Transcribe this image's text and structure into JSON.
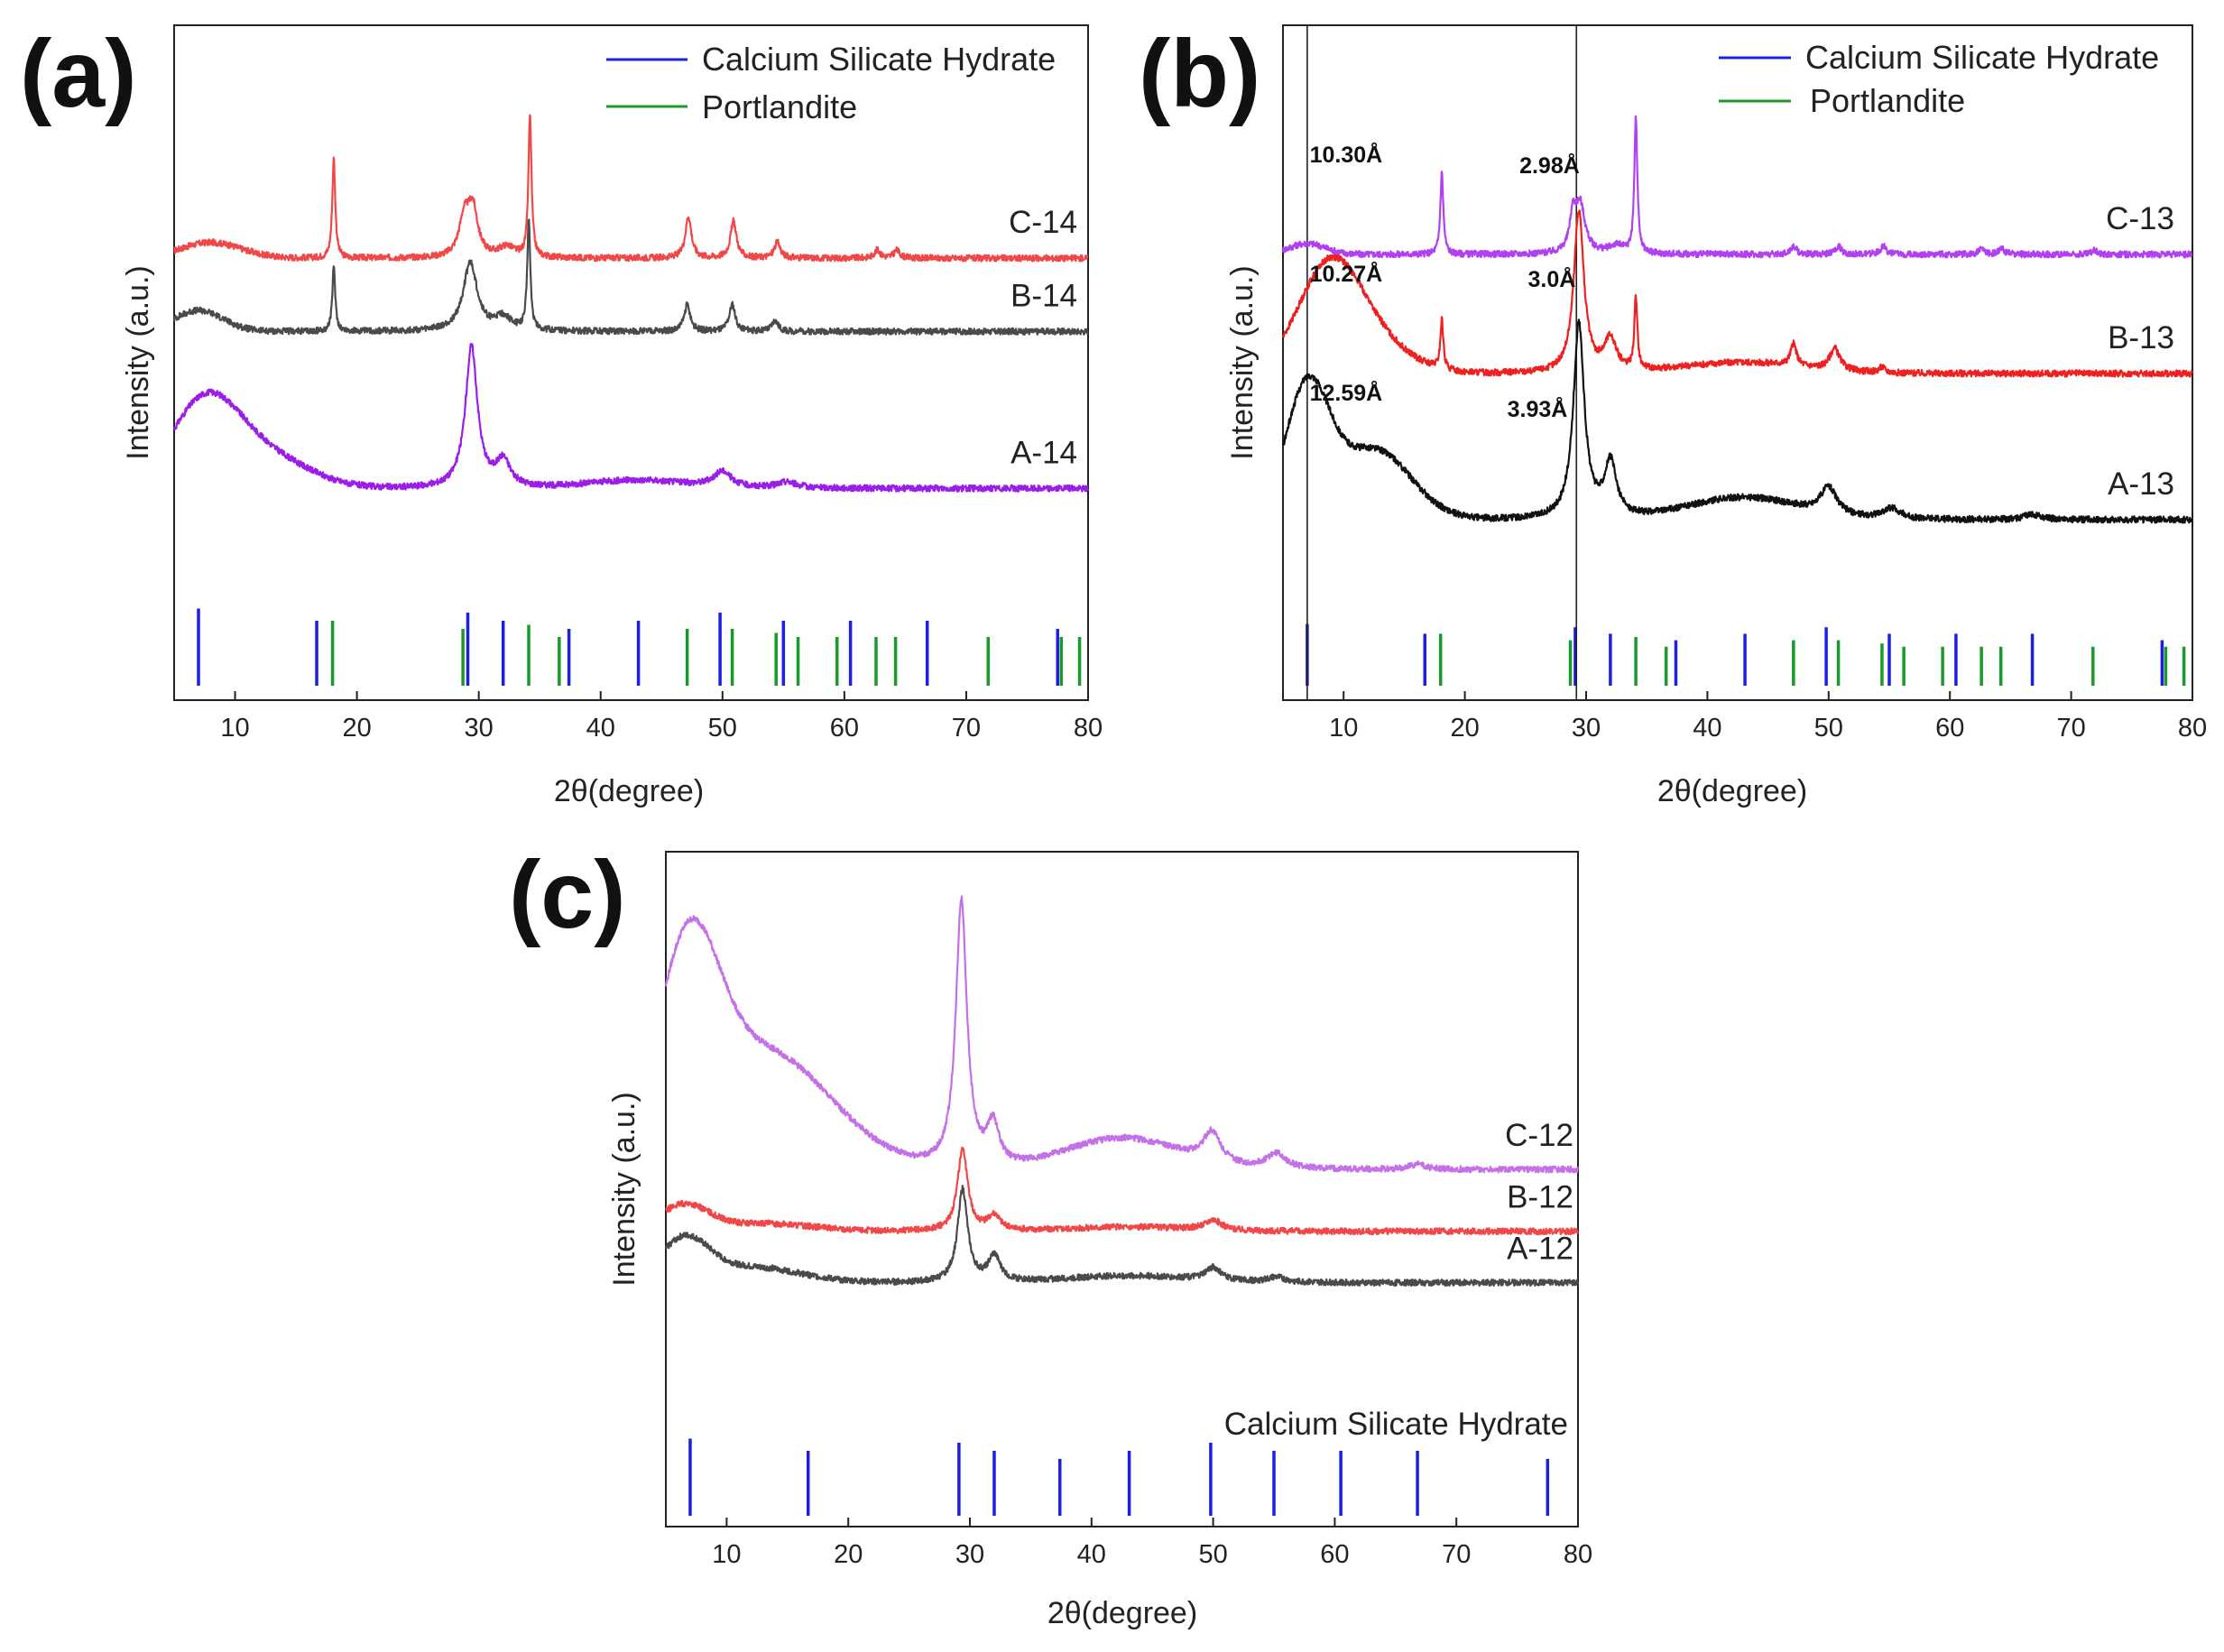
{
  "chart_data": [
    {
      "id": "a",
      "type": "line",
      "panel_label": "(a)",
      "xlabel": "2θ(degree)",
      "ylabel": "Intensity (a.u.)",
      "xlim": [
        5,
        80
      ],
      "xticks": [
        10,
        20,
        30,
        40,
        50,
        60,
        70,
        80
      ],
      "tick_labels": [
        "10",
        "20",
        "30",
        "40",
        "50",
        "60",
        "70",
        "80"
      ],
      "legend": [
        {
          "label": "Calcium Silicate Hydrate",
          "color": "#1f1fe0"
        },
        {
          "label": "Portlandite",
          "color": "#1a9a2a"
        }
      ],
      "series": [
        {
          "name": "C-14",
          "color": "#f04848",
          "baseline": 0.61,
          "peaks": [
            [
              18.1,
              0.19,
              0.15
            ],
            [
              28.8,
              0.07,
              0.5
            ],
            [
              29.5,
              0.09,
              0.5
            ],
            [
              32.3,
              0.02,
              0.8
            ],
            [
              34.2,
              0.27,
              0.15
            ],
            [
              47.2,
              0.08,
              0.3
            ],
            [
              50.9,
              0.07,
              0.3
            ],
            [
              54.5,
              0.03,
              0.3
            ],
            [
              62.7,
              0.015,
              0.3
            ],
            [
              64.3,
              0.015,
              0.3
            ]
          ],
          "broad": [
            [
              8.0,
              0.03,
              2.5
            ]
          ]
        },
        {
          "name": "B-14",
          "color": "#4a4a4a",
          "baseline": 0.47,
          "peaks": [
            [
              18.1,
              0.12,
              0.15
            ],
            [
              29.3,
              0.13,
              0.7
            ],
            [
              32.0,
              0.025,
              0.8
            ],
            [
              34.1,
              0.21,
              0.15
            ],
            [
              47.1,
              0.05,
              0.3
            ],
            [
              50.8,
              0.05,
              0.3
            ],
            [
              54.3,
              0.02,
              0.3
            ]
          ],
          "broad": [
            [
              7.0,
              0.04,
              2.0
            ]
          ]
        },
        {
          "name": "A-14",
          "color": "#9b1ee8",
          "baseline": 0.17,
          "peaks": [
            [
              29.4,
              0.27,
              0.6
            ],
            [
              32.0,
              0.05,
              0.7
            ],
            [
              50.0,
              0.03,
              0.9
            ],
            [
              55.3,
              0.012,
              1.0
            ]
          ],
          "broad": [
            [
              7.5,
              0.16,
              2.8
            ],
            [
              12.5,
              0.06,
              3.5
            ],
            [
              43.0,
              0.015,
              4.0
            ]
          ]
        }
      ],
      "ref_lines": [
        {
          "phase": "Calcium Silicate Hydrate",
          "positions": [
            7.0,
            16.7,
            29.1,
            32.0,
            37.4,
            43.1,
            49.8,
            55.0,
            60.5,
            66.8,
            77.5
          ]
        },
        {
          "phase": "Portlandite",
          "positions": [
            18.0,
            28.7,
            34.1,
            36.6,
            47.1,
            50.8,
            54.4,
            56.2,
            59.4,
            62.6,
            64.2,
            71.8,
            77.8,
            79.3
          ]
        }
      ]
    },
    {
      "id": "b",
      "type": "line",
      "panel_label": "(b)",
      "xlabel": "2θ(degree)",
      "ylabel": "Intensity (a.u.)",
      "xlim": [
        5,
        80
      ],
      "xticks": [
        10,
        20,
        30,
        40,
        50,
        60,
        70,
        80
      ],
      "tick_labels": [
        "10",
        "20",
        "30",
        "40",
        "50",
        "60",
        "70",
        "80"
      ],
      "legend": [
        {
          "label": "Calcium Silicate Hydrate",
          "color": "#1f1fe0"
        },
        {
          "label": "Portlandite",
          "color": "#1a9a2a"
        }
      ],
      "vlines": [
        7.0,
        29.2
      ],
      "annotations": [
        {
          "text": "10.30Å",
          "x": 7.2,
          "y": 0.8
        },
        {
          "text": "2.98Å",
          "x": 24.5,
          "y": 0.78
        },
        {
          "text": "10.27Å",
          "x": 7.2,
          "y": 0.58
        },
        {
          "text": "3.0Å",
          "x": 25.2,
          "y": 0.57
        },
        {
          "text": "12.59Å",
          "x": 7.2,
          "y": 0.36
        },
        {
          "text": "3.93Å",
          "x": 23.5,
          "y": 0.33
        }
      ],
      "series": [
        {
          "name": "C-13",
          "color": "#b040f0",
          "baseline": 0.63,
          "peaks": [
            [
              18.1,
              0.15,
              0.15
            ],
            [
              28.9,
              0.06,
              0.3
            ],
            [
              29.5,
              0.09,
              0.5
            ],
            [
              32.5,
              0.015,
              0.8
            ],
            [
              34.1,
              0.25,
              0.15
            ],
            [
              47.1,
              0.015,
              0.3
            ],
            [
              50.8,
              0.015,
              0.3
            ],
            [
              54.5,
              0.015,
              0.3
            ],
            [
              62.6,
              0.01,
              0.3
            ],
            [
              64.3,
              0.01,
              0.3
            ],
            [
              71.9,
              0.008,
              0.3
            ]
          ],
          "broad": [
            [
              7.0,
              0.02,
              1.5
            ]
          ]
        },
        {
          "name": "B-13",
          "color": "#ee2020",
          "baseline": 0.41,
          "peaks": [
            [
              18.1,
              0.09,
              0.15
            ],
            [
              29.4,
              0.3,
              0.5
            ],
            [
              32.0,
              0.06,
              0.6
            ],
            [
              34.1,
              0.13,
              0.15
            ],
            [
              47.1,
              0.04,
              0.3
            ],
            [
              50.5,
              0.04,
              0.5
            ],
            [
              54.4,
              0.01,
              0.3
            ]
          ],
          "broad": [
            [
              8.8,
              0.19,
              2.6
            ],
            [
              12.5,
              0.05,
              3.0
            ],
            [
              43.0,
              0.02,
              5.0
            ]
          ]
        },
        {
          "name": "A-13",
          "color": "#111111",
          "baseline": 0.14,
          "peaks": [
            [
              29.4,
              0.36,
              0.55
            ],
            [
              32.0,
              0.1,
              0.6
            ],
            [
              50.0,
              0.05,
              0.8
            ],
            [
              55.2,
              0.02,
              0.9
            ],
            [
              66.8,
              0.01,
              0.8
            ]
          ],
          "broad": [
            [
              7.0,
              0.24,
              1.8
            ],
            [
              12.5,
              0.13,
              3.0
            ],
            [
              43.0,
              0.04,
              4.5
            ]
          ]
        }
      ],
      "ref_lines": [
        {
          "phase": "Calcium Silicate Hydrate",
          "positions": [
            7.0,
            16.7,
            29.1,
            32.0,
            37.4,
            43.1,
            49.8,
            55.0,
            60.5,
            66.8,
            77.5
          ]
        },
        {
          "phase": "Portlandite",
          "positions": [
            18.0,
            28.7,
            34.1,
            36.6,
            47.1,
            50.8,
            54.4,
            56.2,
            59.4,
            62.6,
            64.2,
            71.8,
            77.8,
            79.3
          ]
        }
      ]
    },
    {
      "id": "c",
      "type": "line",
      "panel_label": "(c)",
      "xlabel": "2θ(degree)",
      "ylabel": "Intensity (a.u.)",
      "xlim": [
        5,
        80
      ],
      "xticks": [
        10,
        20,
        30,
        40,
        50,
        60,
        70,
        80
      ],
      "tick_labels": [
        "10",
        "20",
        "30",
        "40",
        "50",
        "60",
        "70",
        "80"
      ],
      "legend": [],
      "ref_title": "Calcium Silicate Hydrate",
      "series": [
        {
          "name": "C-12",
          "color": "#c470e8",
          "baseline": 0.41,
          "peaks": [
            [
              29.3,
              0.52,
              0.55
            ],
            [
              31.9,
              0.08,
              0.6
            ],
            [
              49.9,
              0.06,
              0.9
            ],
            [
              55.2,
              0.03,
              1.0
            ],
            [
              66.8,
              0.01,
              0.8
            ]
          ],
          "broad": [
            [
              6.8,
              0.36,
              2.5
            ],
            [
              13.0,
              0.23,
              5.5
            ],
            [
              42.5,
              0.06,
              4.5
            ]
          ]
        },
        {
          "name": "B-12",
          "color": "#f04848",
          "baseline": 0.29,
          "peaks": [
            [
              29.4,
              0.16,
              0.5
            ],
            [
              32.0,
              0.03,
              0.6
            ],
            [
              50.0,
              0.02,
              0.8
            ]
          ],
          "broad": [
            [
              6.5,
              0.05,
              2.0
            ],
            [
              13.0,
              0.015,
              4.0
            ],
            [
              43.0,
              0.008,
              5.0
            ]
          ]
        },
        {
          "name": "A-12",
          "color": "#4a4a4a",
          "baseline": 0.19,
          "peaks": [
            [
              29.4,
              0.18,
              0.5
            ],
            [
              32.0,
              0.05,
              0.6
            ],
            [
              50.0,
              0.025,
              0.8
            ],
            [
              55.2,
              0.01,
              0.9
            ]
          ],
          "broad": [
            [
              6.5,
              0.08,
              2.0
            ],
            [
              12.0,
              0.03,
              4.0
            ],
            [
              43.0,
              0.013,
              5.0
            ]
          ]
        }
      ],
      "ref_lines": [
        {
          "phase": "Calcium Silicate Hydrate",
          "positions": [
            7.0,
            16.7,
            29.1,
            32.0,
            37.4,
            43.1,
            49.8,
            55.0,
            60.5,
            66.8,
            77.5
          ]
        }
      ]
    }
  ],
  "colors": {
    "csh": "#1f1fe0",
    "portlandite": "#1a9a2a"
  }
}
